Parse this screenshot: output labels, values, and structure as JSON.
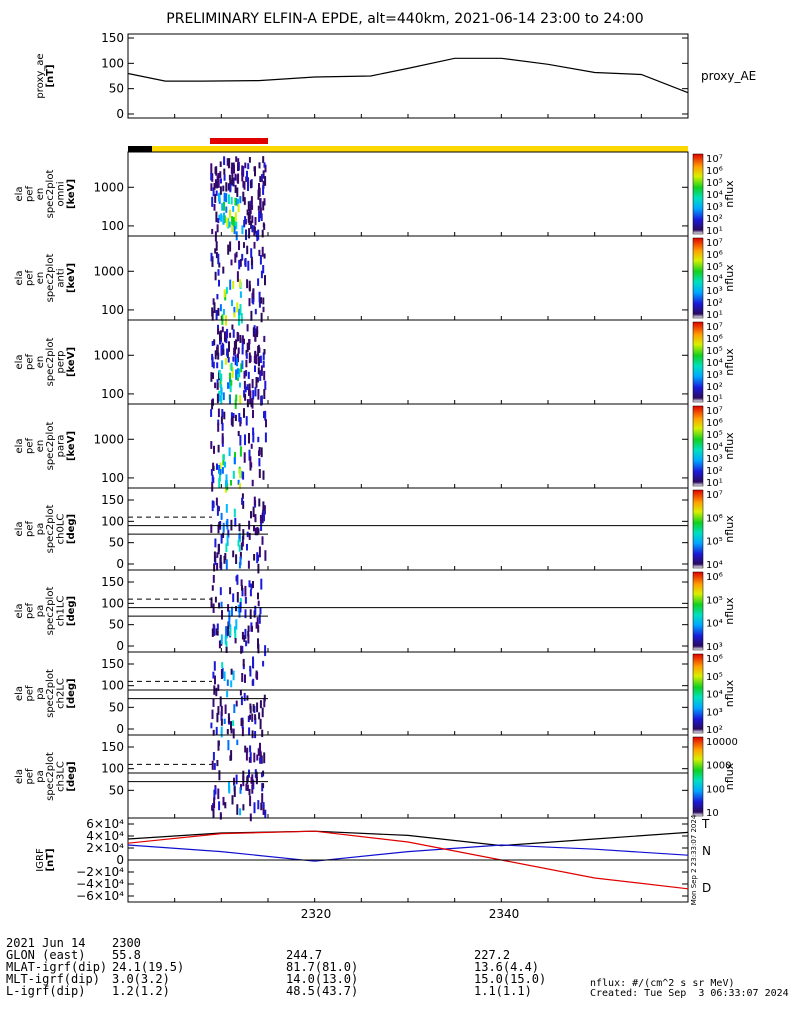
{
  "title": "PRELIMINARY ELFIN-A EPDE, alt=440km, 2021-06-14 23:00 to 24:00",
  "colors": {
    "spacecraft_bar": "#FFD700",
    "science_bar": "#E00000",
    "eclipse_bar": "#000000"
  },
  "panels": [
    {
      "id": "proxy_ae",
      "label_lines": [
        "proxy_ae",
        "[nT]"
      ],
      "ticks": [
        "150",
        "100",
        "50",
        "0"
      ],
      "side_label": "proxy_AE"
    },
    {
      "id": "en_omni",
      "label_lines": [
        "ela",
        "pef",
        "en",
        "spec2plot",
        "omni",
        "[keV]"
      ],
      "ticks": [
        "1000",
        "100"
      ],
      "colorbar": {
        "title": "nflux",
        "ticks": [
          "10⁷",
          "10⁶",
          "10⁵",
          "10⁴",
          "10³",
          "10²",
          "10¹"
        ]
      }
    },
    {
      "id": "en_anti",
      "label_lines": [
        "ela",
        "pef",
        "en",
        "spec2plot",
        "anti",
        "[keV]"
      ],
      "ticks": [
        "1000",
        "100"
      ],
      "colorbar": {
        "title": "nflux",
        "ticks": [
          "10⁷",
          "10⁶",
          "10⁵",
          "10⁴",
          "10³",
          "10²",
          "10¹"
        ]
      }
    },
    {
      "id": "en_perp",
      "label_lines": [
        "ela",
        "pef",
        "en",
        "spec2plot",
        "perp",
        "[keV]"
      ],
      "ticks": [
        "1000",
        "100"
      ],
      "colorbar": {
        "title": "nflux",
        "ticks": [
          "10⁷",
          "10⁶",
          "10⁵",
          "10⁴",
          "10³",
          "10²",
          "10¹"
        ]
      }
    },
    {
      "id": "en_para",
      "label_lines": [
        "ela",
        "pef",
        "en",
        "spec2plot",
        "para",
        "[keV]"
      ],
      "ticks": [
        "1000",
        "100"
      ],
      "colorbar": {
        "title": "nflux",
        "ticks": [
          "10⁷",
          "10⁶",
          "10⁵",
          "10⁴",
          "10³",
          "10²",
          "10¹"
        ]
      }
    },
    {
      "id": "pa_ch0",
      "label_lines": [
        "ela",
        "pef",
        "pa",
        "spec2plot",
        "ch0LC",
        "[deg]"
      ],
      "ticks": [
        "150",
        "100",
        "50",
        "0"
      ],
      "colorbar": {
        "title": "nflux",
        "ticks": [
          "10⁷",
          "10⁶",
          "10⁵",
          "10⁴"
        ]
      }
    },
    {
      "id": "pa_ch1",
      "label_lines": [
        "ela",
        "pef",
        "pa",
        "spec2plot",
        "ch1LC",
        "[deg]"
      ],
      "ticks": [
        "150",
        "100",
        "50",
        "0"
      ],
      "colorbar": {
        "title": "nflux",
        "ticks": [
          "10⁶",
          "10⁵",
          "10⁴",
          "10³"
        ]
      }
    },
    {
      "id": "pa_ch2",
      "label_lines": [
        "ela",
        "pef",
        "pa",
        "spec2plot",
        "ch2LC",
        "[deg]"
      ],
      "ticks": [
        "150",
        "100",
        "50",
        "0"
      ],
      "colorbar": {
        "title": "nflux",
        "ticks": [
          "10⁶",
          "10⁵",
          "10⁴",
          "10³",
          "10²"
        ]
      }
    },
    {
      "id": "pa_ch3",
      "label_lines": [
        "ela",
        "pef",
        "pa",
        "spec2plot",
        "ch3LC",
        "[deg]"
      ],
      "ticks": [
        "150",
        "100",
        "50"
      ],
      "colorbar": {
        "title": "nflux",
        "ticks": [
          "10000",
          "1000",
          "100",
          "10"
        ]
      }
    },
    {
      "id": "igrf",
      "label_lines": [
        "IGRF",
        "[nT]"
      ],
      "ticks": [
        "6×10⁴",
        "4×10⁴",
        "2×10⁴",
        "0",
        "−2×10⁴",
        "−4×10⁴",
        "−6×10⁴"
      ],
      "legend": [
        "T",
        "N",
        "D"
      ]
    }
  ],
  "chart_data": [
    {
      "type": "line",
      "title": "proxy_ae",
      "ylabel": "proxy_ae [nT]",
      "ylim": [
        0,
        150
      ],
      "x": [
        0,
        4,
        8,
        14,
        20,
        26,
        30,
        35,
        40,
        45,
        50,
        55,
        60
      ],
      "series": [
        {
          "name": "proxy_AE",
          "values": [
            80,
            65,
            65,
            66,
            73,
            75,
            90,
            110,
            110,
            98,
            82,
            78,
            42
          ]
        }
      ]
    },
    {
      "type": "line",
      "title": "IGRF",
      "ylabel": "IGRF [nT]",
      "ylim": [
        -60000,
        60000
      ],
      "x": [
        0,
        10,
        20,
        30,
        40,
        50,
        60
      ],
      "series": [
        {
          "name": "T",
          "values": [
            35000,
            45000,
            48000,
            41000,
            24000,
            35000,
            46000
          ]
        },
        {
          "name": "N",
          "values": [
            25000,
            14000,
            -2000,
            14000,
            25000,
            18000,
            8000
          ]
        },
        {
          "name": "D",
          "values": [
            28000,
            44000,
            48000,
            30000,
            0,
            -30000,
            -48000
          ]
        }
      ]
    },
    {
      "type": "heatmap",
      "title": "ela pef pa spec2plot",
      "ylabel": "[deg]",
      "ylim": [
        0,
        180
      ],
      "reference_lines": [
        {
          "name": "loss cone",
          "style": "dashed",
          "value": 110
        },
        {
          "name": "90 deg",
          "style": "solid",
          "value": 90
        },
        {
          "name": "anti loss cone",
          "style": "solid",
          "value": 70
        }
      ]
    }
  ],
  "x_axis": {
    "ticks": [
      "2300",
      "2320",
      "2340"
    ]
  },
  "footer": {
    "rows": [
      {
        "label": "2021 Jun 14",
        "v1": "2300",
        "v2": "",
        "v3": ""
      },
      {
        "label": "GLON (east)",
        "v1": "55.8",
        "v2": "244.7",
        "v3": "227.2"
      },
      {
        "label": "MLAT-igrf(dip)",
        "v1": "24.1(19.5)",
        "v2": "81.7(81.0)",
        "v3": "13.6(4.4)"
      },
      {
        "label": "MLT-igrf(dip)",
        "v1": "3.0(3.2)",
        "v2": "14.0(13.0)",
        "v3": "15.0(15.0)"
      },
      {
        "label": "L-igrf(dip)",
        "v1": "1.2(1.2)",
        "v2": "48.5(43.7)",
        "v3": "1.1(1.1)"
      }
    ],
    "units": "nflux: #/(cm^2 s sr MeV)",
    "created": "Created: Tue Sep  3 06:33:07 2024",
    "side_stamp": "Mon Sep  2 23:33:07 2024"
  }
}
